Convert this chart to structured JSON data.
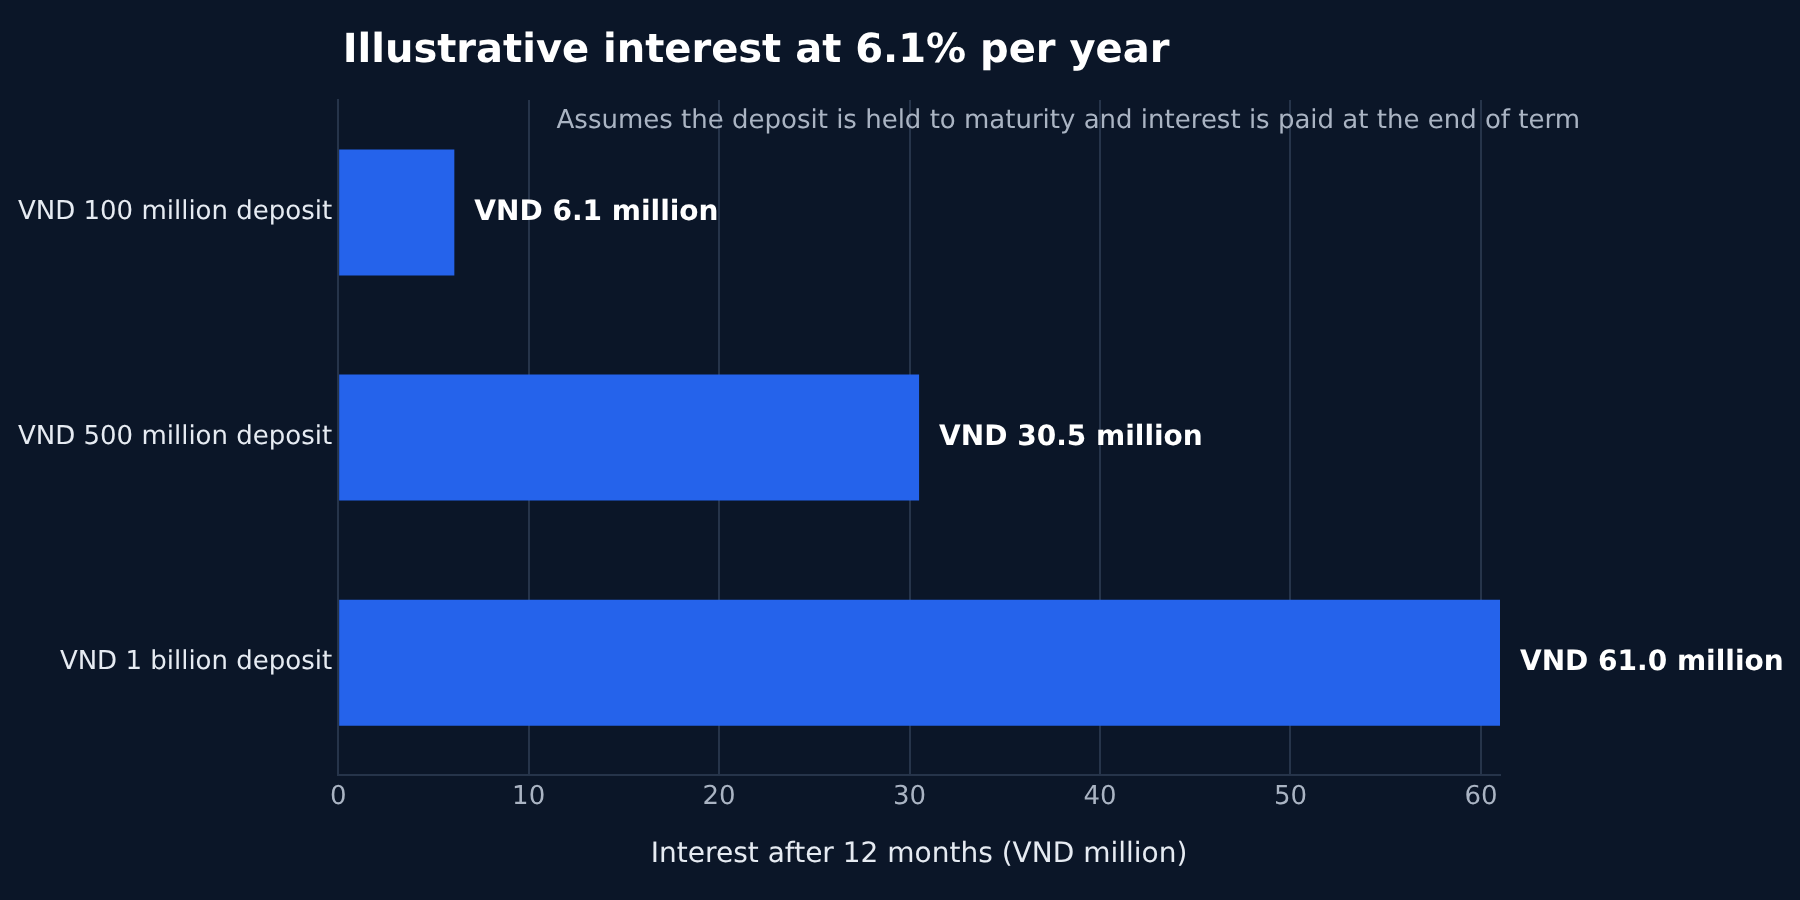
{
  "chart_data": {
    "type": "bar",
    "orientation": "horizontal",
    "title": "Illustrative interest at 6.1% per year",
    "annotations": [
      "Assumes the deposit is held to maturity and interest is paid at the end of term"
    ],
    "xlabel": "Interest after 12 months (VND million)",
    "categories": [
      "VND 100 million deposit",
      "VND 500 million deposit",
      "VND 1 billion deposit"
    ],
    "values": [
      6.1,
      30.5,
      61.0
    ],
    "value_labels": [
      "VND 6.1 million",
      "VND 30.5 million",
      "VND 61.0 million"
    ],
    "color": "#2563eb",
    "xlim": [
      0,
      61
    ],
    "xticks": [
      0,
      10,
      20,
      30,
      40,
      50,
      60
    ],
    "grid": "x",
    "legend": false
  }
}
